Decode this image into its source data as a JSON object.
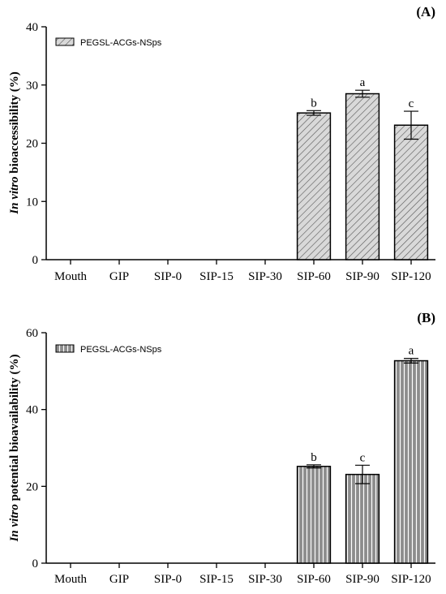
{
  "chart_data": [
    {
      "type": "bar",
      "panel_label": "(A)",
      "categories": [
        "Mouth",
        "GIP",
        "SIP-0",
        "SIP-15",
        "SIP-30",
        "SIP-60",
        "SIP-90",
        "SIP-120"
      ],
      "series": [
        {
          "name": "PEGSL-ACGs-NSps",
          "values": [
            0,
            0,
            0,
            0,
            0,
            25.2,
            28.5,
            23.1
          ],
          "errors": [
            0,
            0,
            0,
            0,
            0,
            0.4,
            0.6,
            2.4
          ],
          "labels": [
            "",
            "",
            "",
            "",
            "",
            "b",
            "a",
            "c"
          ]
        }
      ],
      "ylabel_italic": "In vitro",
      "ylabel_rest": " bioaccessibility (%)",
      "ylim": [
        0,
        40
      ],
      "yticks": [
        0,
        10,
        20,
        30,
        40
      ],
      "legend": "top-left",
      "pattern": "diagonal-hatch",
      "fill_color": "#d9d9d9"
    },
    {
      "type": "bar",
      "panel_label": "(B)",
      "categories": [
        "Mouth",
        "GIP",
        "SIP-0",
        "SIP-15",
        "SIP-30",
        "SIP-60",
        "SIP-90",
        "SIP-120"
      ],
      "series": [
        {
          "name": "PEGSL-ACGs-NSps",
          "values": [
            0,
            0,
            0,
            0,
            0,
            25.2,
            23.1,
            52.7
          ],
          "errors": [
            0,
            0,
            0,
            0,
            0,
            0.4,
            2.4,
            0.6
          ],
          "labels": [
            "",
            "",
            "",
            "",
            "",
            "b",
            "c",
            "a"
          ]
        }
      ],
      "ylabel_italic": "In vitro",
      "ylabel_rest": " potential bioavailability (%)",
      "ylim": [
        0,
        60
      ],
      "yticks": [
        0,
        20,
        40,
        60
      ],
      "legend": "top-left",
      "pattern": "vertical-stripes",
      "fill_color": "#8c8c8c"
    }
  ]
}
